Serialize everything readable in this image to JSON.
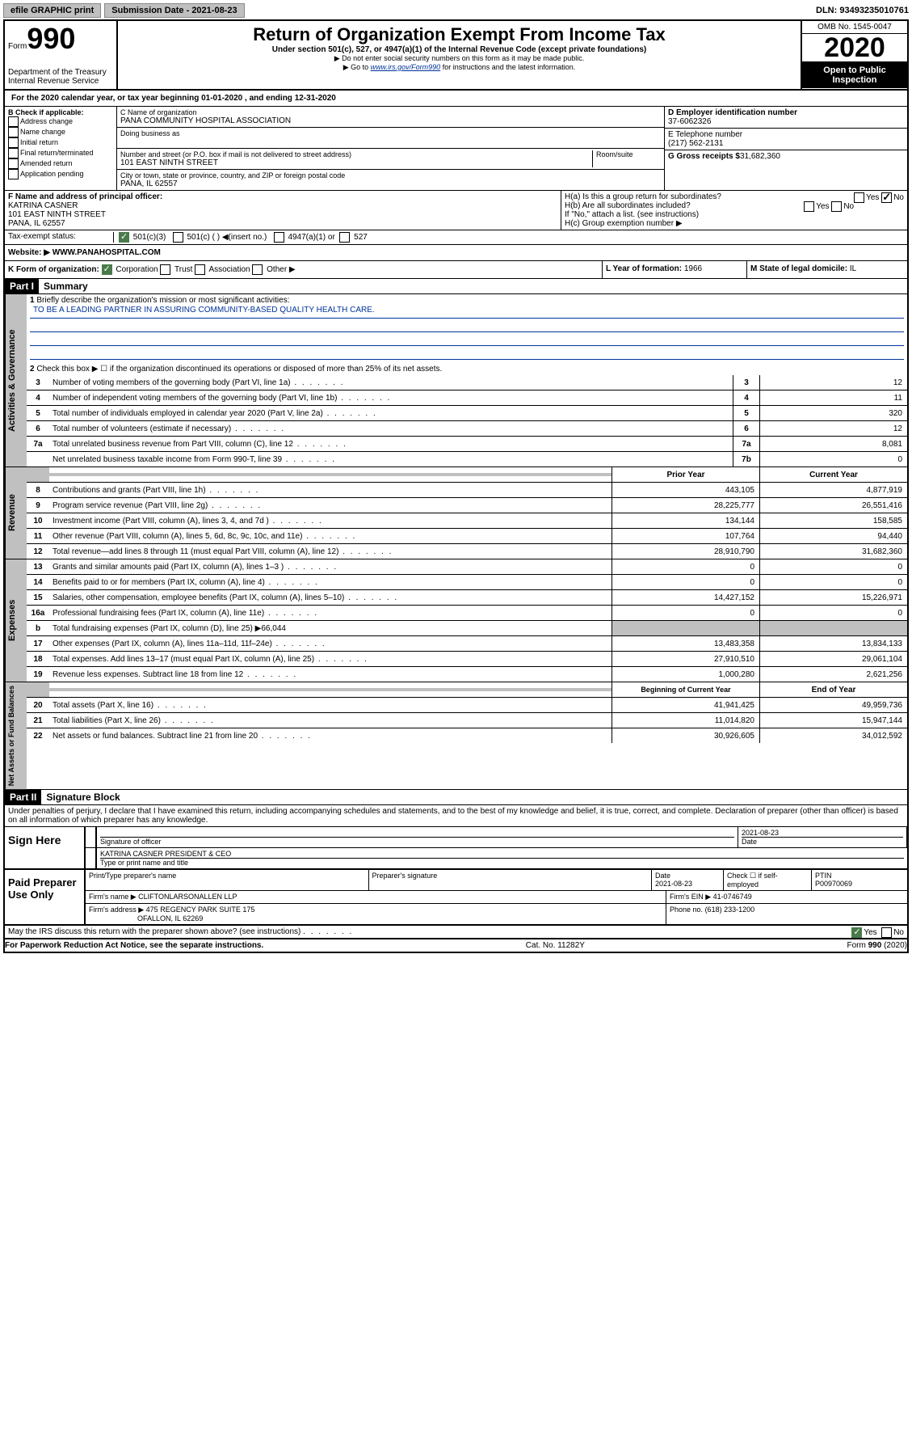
{
  "topbar": {
    "efile": "efile GRAPHIC print",
    "submission": "Submission Date - 2021-08-23",
    "dln": "DLN: 93493235010761"
  },
  "header": {
    "form_label": "Form",
    "form_number": "990",
    "dept": "Department of the Treasury\nInternal Revenue Service",
    "title": "Return of Organization Exempt From Income Tax",
    "sub1": "Under section 501(c), 527, or 4947(a)(1) of the Internal Revenue Code (except private foundations)",
    "sub2": "▶ Do not enter social security numbers on this form as it may be made public.",
    "sub3_pre": "▶ Go to ",
    "sub3_link": "www.irs.gov/Form990",
    "sub3_post": " for instructions and the latest information.",
    "omb": "OMB No. 1545-0047",
    "year": "2020",
    "open": "Open to Public Inspection"
  },
  "lineA": "For the 2020 calendar year, or tax year beginning 01-01-2020   , and ending 12-31-2020",
  "blockB": {
    "label": "B Check if applicable:",
    "opts": [
      "Address change",
      "Name change",
      "Initial return",
      "Final return/terminated",
      "Amended return",
      "Application pending"
    ]
  },
  "blockC": {
    "name_label": "C Name of organization",
    "name": "PANA COMMUNITY HOSPITAL ASSOCIATION",
    "dba_label": "Doing business as",
    "street_label": "Number and street (or P.O. box if mail is not delivered to street address)",
    "room_label": "Room/suite",
    "street": "101 EAST NINTH STREET",
    "city_label": "City or town, state or province, country, and ZIP or foreign postal code",
    "city": "PANA, IL  62557"
  },
  "blockD": {
    "label": "D Employer identification number",
    "ein": "37-6062326"
  },
  "blockE": {
    "label": "E Telephone number",
    "phone": "(217) 562-2131"
  },
  "blockG": {
    "label": "G Gross receipts $",
    "val": "31,682,360"
  },
  "blockF": {
    "label": "F  Name and address of principal officer:",
    "name": "KATRINA CASNER",
    "street": "101 EAST NINTH STREET",
    "city": "PANA, IL  62557"
  },
  "blockH": {
    "ha": "H(a)  Is this a group return for subordinates?",
    "hb": "H(b)  Are all subordinates included?",
    "hb_note": "If \"No,\" attach a list. (see instructions)",
    "hc": "H(c)  Group exemption number ▶"
  },
  "taxExempt": {
    "label": "Tax-exempt status:",
    "o1": "501(c)(3)",
    "o2": "501(c) (  ) ◀(insert no.)",
    "o3": "4947(a)(1) or",
    "o4": "527"
  },
  "website": {
    "label": "Website: ▶",
    "val": "WWW.PANAHOSPITAL.COM"
  },
  "lineK": {
    "label": "K Form of organization:",
    "opts": [
      "Corporation",
      "Trust",
      "Association",
      "Other ▶"
    ]
  },
  "lineL": {
    "label": "L Year of formation:",
    "val": "1966"
  },
  "lineM": {
    "label": "M State of legal domicile:",
    "val": "IL"
  },
  "part1": {
    "header": "Part I",
    "title": "Summary"
  },
  "governance": {
    "tab": "Activities & Governance",
    "l1": "Briefly describe the organization's mission or most significant activities:",
    "mission": "TO BE A LEADING PARTNER IN ASSURING COMMUNITY-BASED QUALITY HEALTH CARE.",
    "l2": "Check this box ▶ ☐  if the organization discontinued its operations or disposed of more than 25% of its net assets.",
    "lines": [
      {
        "n": "3",
        "t": "Number of voting members of the governing body (Part VI, line 1a)",
        "b": "3",
        "v": "12"
      },
      {
        "n": "4",
        "t": "Number of independent voting members of the governing body (Part VI, line 1b)",
        "b": "4",
        "v": "11"
      },
      {
        "n": "5",
        "t": "Total number of individuals employed in calendar year 2020 (Part V, line 2a)",
        "b": "5",
        "v": "320"
      },
      {
        "n": "6",
        "t": "Total number of volunteers (estimate if necessary)",
        "b": "6",
        "v": "12"
      },
      {
        "n": "7a",
        "t": "Total unrelated business revenue from Part VIII, column (C), line 12",
        "b": "7a",
        "v": "8,081"
      },
      {
        "n": "",
        "t": "Net unrelated business taxable income from Form 990-T, line 39",
        "b": "7b",
        "v": "0"
      }
    ]
  },
  "revenue": {
    "tab": "Revenue",
    "hdr_prior": "Prior Year",
    "hdr_curr": "Current Year",
    "lines": [
      {
        "n": "8",
        "t": "Contributions and grants (Part VIII, line 1h)",
        "p": "443,105",
        "c": "4,877,919"
      },
      {
        "n": "9",
        "t": "Program service revenue (Part VIII, line 2g)",
        "p": "28,225,777",
        "c": "26,551,416"
      },
      {
        "n": "10",
        "t": "Investment income (Part VIII, column (A), lines 3, 4, and 7d )",
        "p": "134,144",
        "c": "158,585"
      },
      {
        "n": "11",
        "t": "Other revenue (Part VIII, column (A), lines 5, 6d, 8c, 9c, 10c, and 11e)",
        "p": "107,764",
        "c": "94,440"
      },
      {
        "n": "12",
        "t": "Total revenue—add lines 8 through 11 (must equal Part VIII, column (A), line 12)",
        "p": "28,910,790",
        "c": "31,682,360"
      }
    ]
  },
  "expenses": {
    "tab": "Expenses",
    "lines": [
      {
        "n": "13",
        "t": "Grants and similar amounts paid (Part IX, column (A), lines 1–3 )",
        "p": "0",
        "c": "0"
      },
      {
        "n": "14",
        "t": "Benefits paid to or for members (Part IX, column (A), line 4)",
        "p": "0",
        "c": "0"
      },
      {
        "n": "15",
        "t": "Salaries, other compensation, employee benefits (Part IX, column (A), lines 5–10)",
        "p": "14,427,152",
        "c": "15,226,971"
      },
      {
        "n": "16a",
        "t": "Professional fundraising fees (Part IX, column (A), line 11e)",
        "p": "0",
        "c": "0"
      },
      {
        "n": "b",
        "t": "Total fundraising expenses (Part IX, column (D), line 25) ▶66,044",
        "p": "",
        "c": "",
        "gray": true
      },
      {
        "n": "17",
        "t": "Other expenses (Part IX, column (A), lines 11a–11d, 11f–24e)",
        "p": "13,483,358",
        "c": "13,834,133"
      },
      {
        "n": "18",
        "t": "Total expenses. Add lines 13–17 (must equal Part IX, column (A), line 25)",
        "p": "27,910,510",
        "c": "29,061,104"
      },
      {
        "n": "19",
        "t": "Revenue less expenses. Subtract line 18 from line 12",
        "p": "1,000,280",
        "c": "2,621,256"
      }
    ]
  },
  "netassets": {
    "tab": "Net Assets or Fund Balances",
    "hdr_begin": "Beginning of Current Year",
    "hdr_end": "End of Year",
    "lines": [
      {
        "n": "20",
        "t": "Total assets (Part X, line 16)",
        "p": "41,941,425",
        "c": "49,959,736"
      },
      {
        "n": "21",
        "t": "Total liabilities (Part X, line 26)",
        "p": "11,014,820",
        "c": "15,947,144"
      },
      {
        "n": "22",
        "t": "Net assets or fund balances. Subtract line 21 from line 20",
        "p": "30,926,605",
        "c": "34,012,592"
      }
    ]
  },
  "part2": {
    "header": "Part II",
    "title": "Signature Block",
    "perjury": "Under penalties of perjury, I declare that I have examined this return, including accompanying schedules and statements, and to the best of my knowledge and belief, it is true, correct, and complete. Declaration of preparer (other than officer) is based on all information of which preparer has any knowledge."
  },
  "sign": {
    "label": "Sign Here",
    "sig_label": "Signature of officer",
    "date": "2021-08-23",
    "date_label": "Date",
    "name": "KATRINA CASNER  PRESIDENT & CEO",
    "name_label": "Type or print name and title"
  },
  "preparer": {
    "label": "Paid Preparer Use Only",
    "h_name": "Print/Type preparer's name",
    "h_sig": "Preparer's signature",
    "h_date": "Date",
    "date": "2021-08-23",
    "h_check": "Check ☐ if self-employed",
    "h_ptin": "PTIN",
    "ptin": "P00970069",
    "firm_label": "Firm's name     ▶",
    "firm": "CLIFTONLARSONALLEN LLP",
    "ein_label": "Firm's EIN ▶",
    "ein": "41-0746749",
    "addr_label": "Firm's address ▶",
    "addr1": "475 REGENCY PARK SUITE 175",
    "addr2": "OFALLON, IL  62269",
    "phone_label": "Phone no.",
    "phone": "(618) 233-1200"
  },
  "discuss": "May the IRS discuss this return with the preparer shown above? (see instructions)",
  "footer": {
    "left": "For Paperwork Reduction Act Notice, see the separate instructions.",
    "mid": "Cat. No. 11282Y",
    "right": "Form 990 (2020)"
  }
}
